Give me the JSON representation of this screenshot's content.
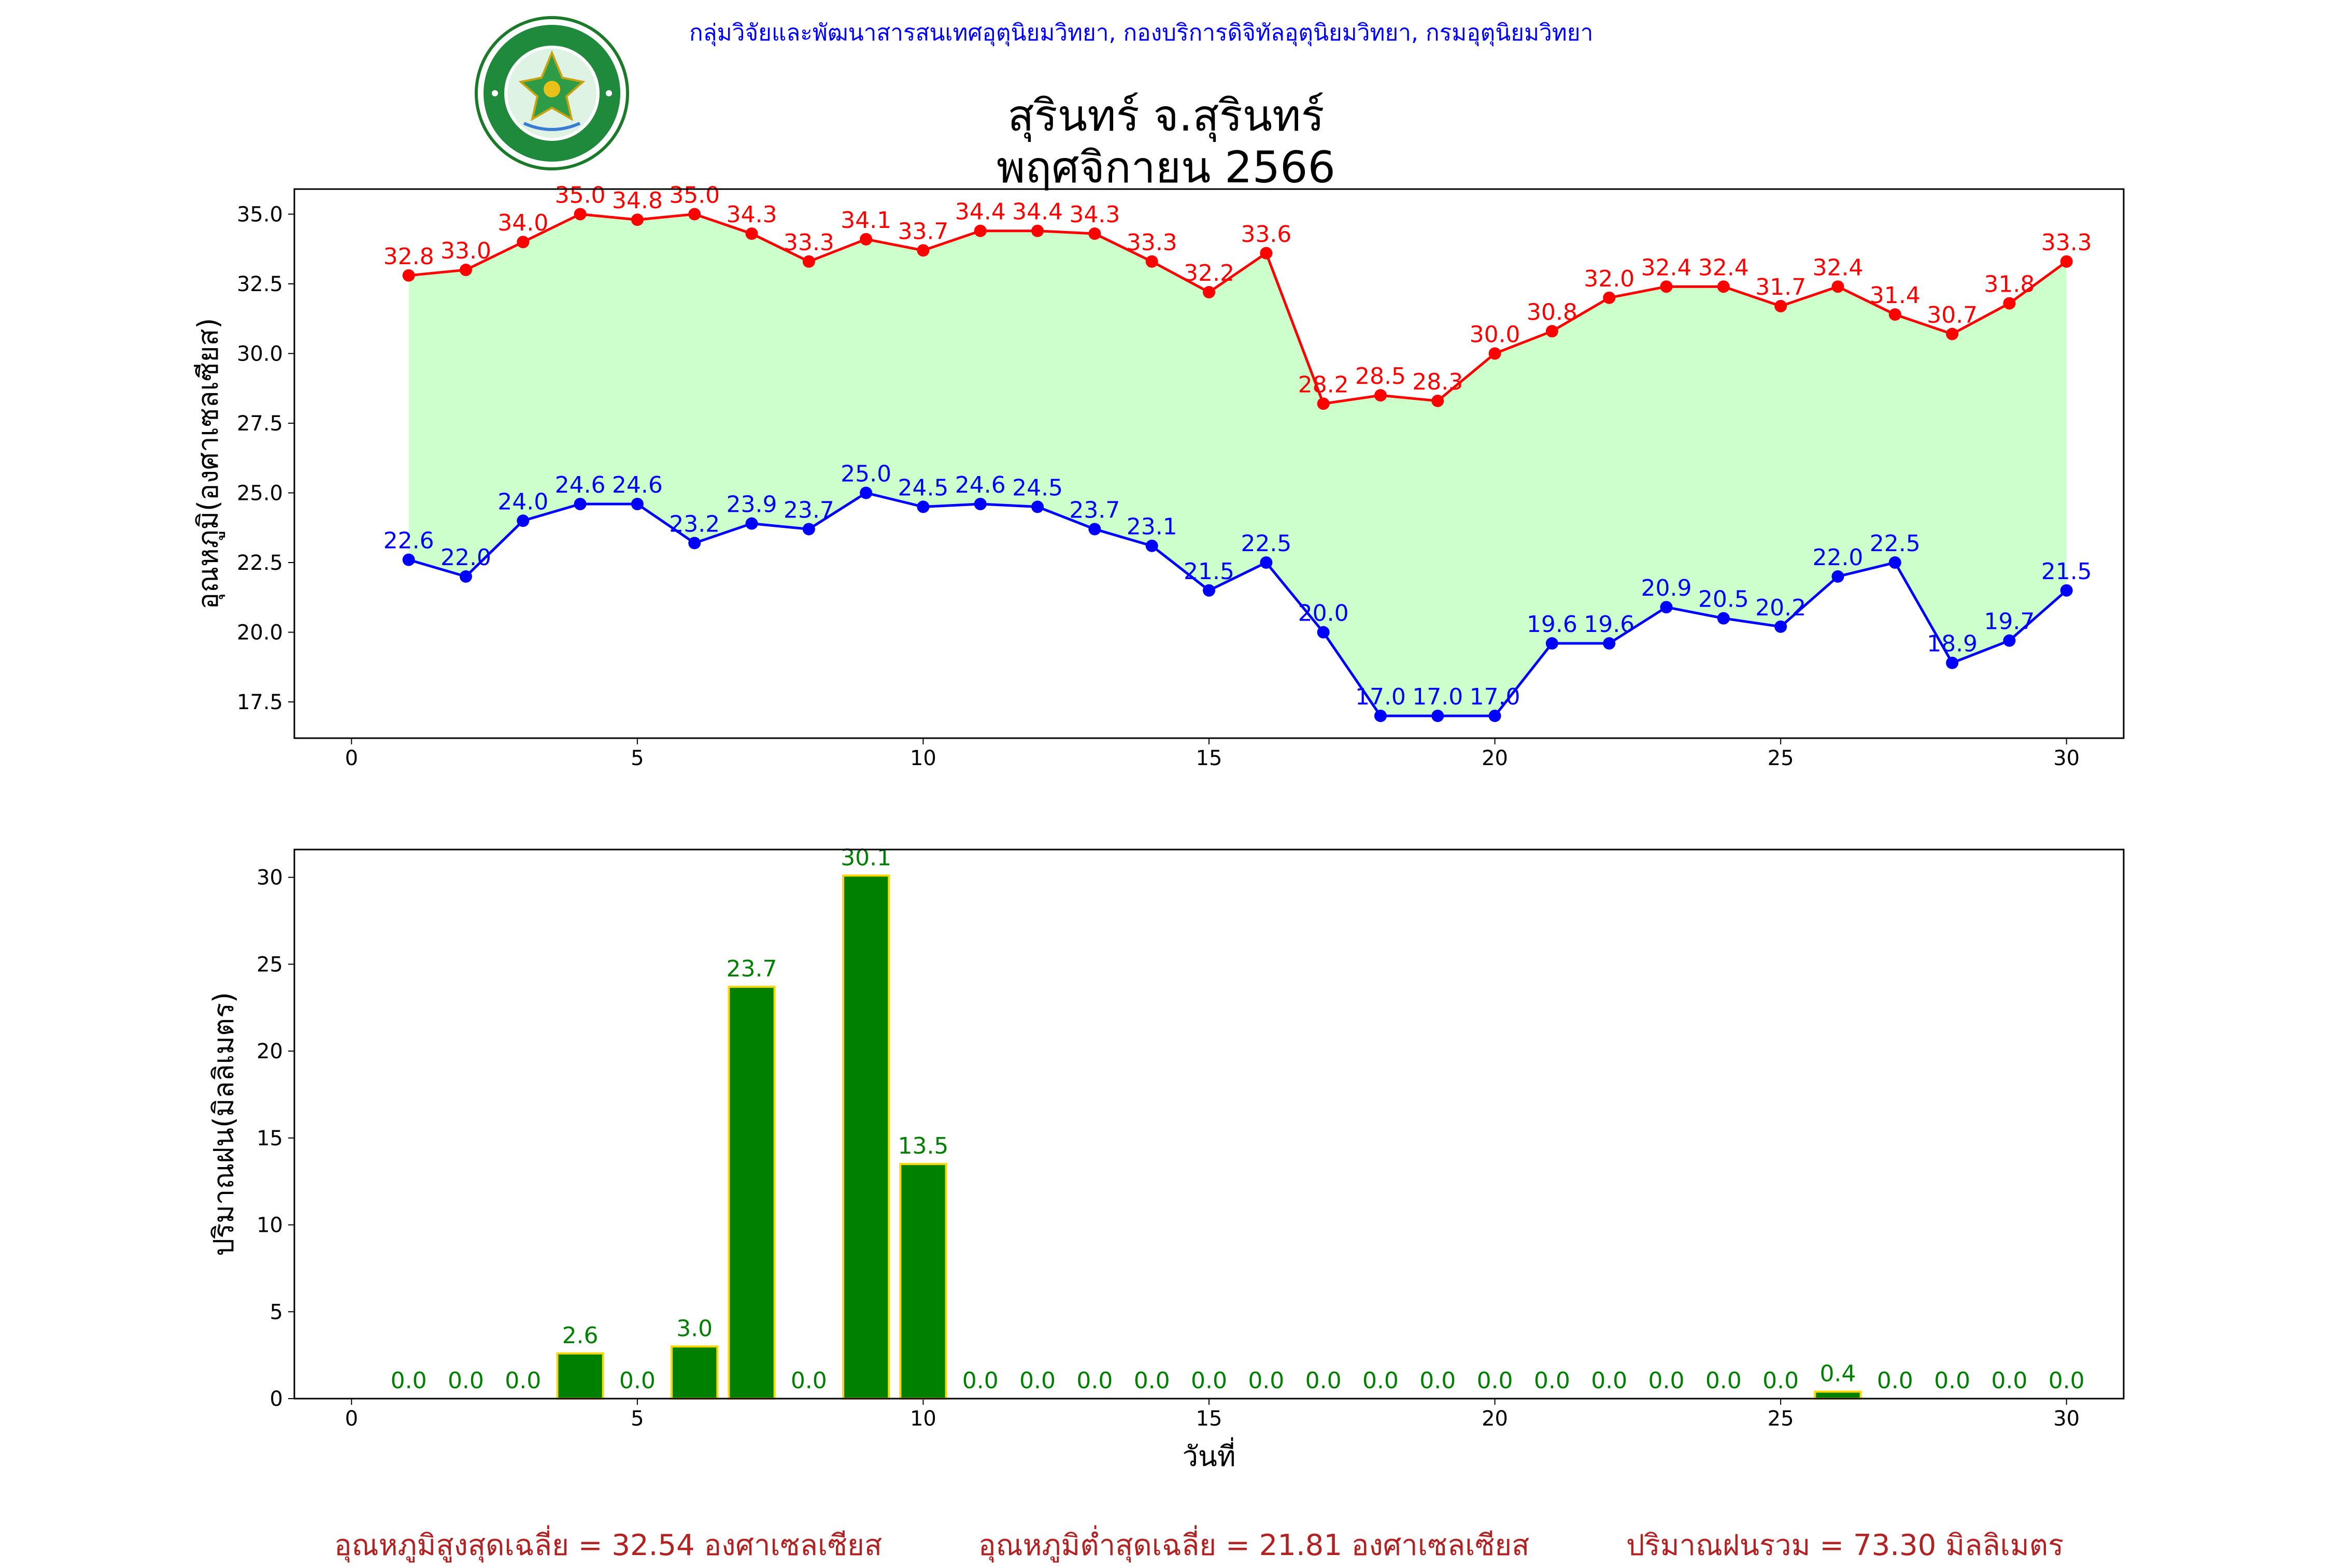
{
  "header": {
    "org_line": "กลุ่มวิจัยและพัฒนาสารสนเทศอุตุนิยมวิทยา, กองบริการดิจิทัลอุตุนิยมวิทยา, กรมอุตุนิยมวิทยา",
    "title_line1": "สุรินทร์ จ.สุรินทร์",
    "title_line2": "พฤศจิกายน 2566",
    "logo_text": "กรมอุตุนิยมวิทยา METEOROLOGICAL DEPARTMENT"
  },
  "colors": {
    "max_series": "#ff0000",
    "min_series": "#0000ff",
    "fill": "#ccffcc",
    "bar_fill": "#008000",
    "bar_edge": "#ffd700",
    "bar_label": "#008000",
    "footer": "#b22222",
    "header": "#0000ff"
  },
  "chart_data": [
    {
      "type": "line",
      "ylabel": "อุณหภูมิ(องศาเซลเซียส)",
      "xlim": [
        -1,
        31
      ],
      "ylim": [
        16.2,
        35.9
      ],
      "x_ticks": [
        0,
        5,
        10,
        15,
        20,
        25,
        30
      ],
      "y_ticks": [
        17.5,
        20.0,
        22.5,
        25.0,
        27.5,
        30.0,
        32.5,
        35.0
      ],
      "grid": false,
      "x": [
        1,
        2,
        3,
        4,
        5,
        6,
        7,
        8,
        9,
        10,
        11,
        12,
        13,
        14,
        15,
        16,
        17,
        18,
        19,
        20,
        21,
        22,
        23,
        24,
        25,
        26,
        27,
        28,
        29,
        30
      ],
      "series": [
        {
          "key": "max",
          "values": [
            32.8,
            33.0,
            34.0,
            35.0,
            34.8,
            35.0,
            34.3,
            33.3,
            34.1,
            33.7,
            34.4,
            34.4,
            34.3,
            33.3,
            32.2,
            33.6,
            28.2,
            28.5,
            28.3,
            30.0,
            30.8,
            32.0,
            32.4,
            32.4,
            31.7,
            32.4,
            31.4,
            30.7,
            31.8,
            33.3
          ]
        },
        {
          "key": "min",
          "values": [
            22.6,
            22.0,
            24.0,
            24.6,
            24.6,
            23.2,
            23.9,
            23.7,
            25.0,
            24.5,
            24.6,
            24.5,
            23.7,
            23.1,
            21.5,
            22.5,
            20.0,
            17.0,
            17.0,
            17.0,
            19.6,
            19.6,
            20.9,
            20.5,
            20.2,
            22.0,
            22.5,
            18.9,
            19.7,
            21.5
          ]
        }
      ]
    },
    {
      "type": "bar",
      "ylabel": "ปริมาณฝน(มิลลิเมตร)",
      "xlabel": "วันที่",
      "xlim": [
        -1,
        31
      ],
      "ylim": [
        0,
        31.6
      ],
      "x_ticks": [
        0,
        5,
        10,
        15,
        20,
        25,
        30
      ],
      "y_ticks": [
        0,
        5,
        10,
        15,
        20,
        25,
        30
      ],
      "x": [
        1,
        2,
        3,
        4,
        5,
        6,
        7,
        8,
        9,
        10,
        11,
        12,
        13,
        14,
        15,
        16,
        17,
        18,
        19,
        20,
        21,
        22,
        23,
        24,
        25,
        26,
        27,
        28,
        29,
        30
      ],
      "values": [
        0.0,
        0.0,
        0.0,
        2.6,
        0.0,
        3.0,
        23.7,
        0.0,
        30.1,
        13.5,
        0.0,
        0.0,
        0.0,
        0.0,
        0.0,
        0.0,
        0.0,
        0.0,
        0.0,
        0.0,
        0.0,
        0.0,
        0.0,
        0.0,
        0.0,
        0.4,
        0.0,
        0.0,
        0.0,
        0.0
      ]
    }
  ],
  "footer": {
    "avg_max": "อุณหภูมิสูงสุดเฉลี่ย = 32.54 องศาเซลเซียส",
    "avg_min": "อุณหภูมิต่ำสุดเฉลี่ย = 21.81 องศาเซลเซียส",
    "total_rain": "ปริมาณฝนรวม = 73.30 มิลลิเมตร"
  }
}
